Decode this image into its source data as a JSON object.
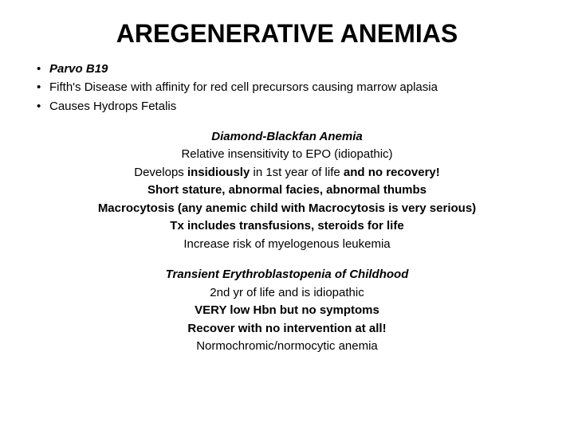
{
  "title": "AREGENERATIVE ANEMIAS",
  "bullets": {
    "b0": "Parvo B19",
    "b1": "Fifth's Disease with affinity for red cell precursors causing marrow aplasia",
    "b2": "Causes Hydrops Fetalis"
  },
  "section1": {
    "heading": "Diamond-Blackfan Anemia",
    "l1": "Relative insensitivity to EPO (idiopathic)",
    "l2a": "Develops ",
    "l2b": "insidiously",
    "l2c": " in 1st year of life ",
    "l2d": "and no recovery!",
    "l3": "Short stature, abnormal facies, abnormal thumbs",
    "l4": "Macrocytosis (any anemic child with Macrocytosis is very serious)",
    "l5": "Tx includes transfusions, steroids for life",
    "l6": "Increase risk of myelogenous leukemia"
  },
  "section2": {
    "heading": "Transient Erythroblastopenia of Childhood",
    "l1": "2nd yr of life and is idiopathic",
    "l2": "VERY low Hbn but no symptoms",
    "l3": "Recover with no intervention at all!",
    "l4": "Normochromic/normocytic anemia"
  },
  "colors": {
    "background": "#ffffff",
    "text": "#000000"
  },
  "typography": {
    "title_fontsize": 32,
    "body_fontsize": 15,
    "font_family": "Arial"
  }
}
